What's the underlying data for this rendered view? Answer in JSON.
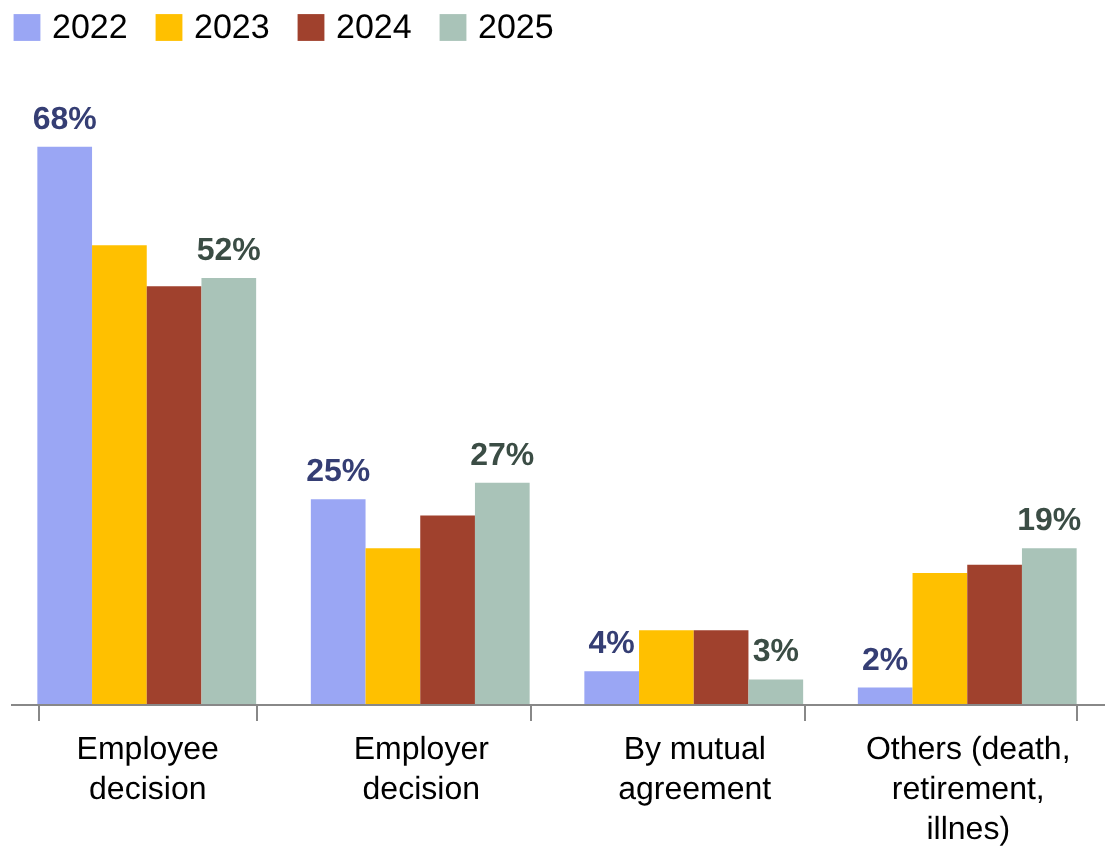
{
  "chart_data": {
    "type": "bar",
    "categories": [
      "Employee decision",
      "Employer decision",
      "By mutual agreement",
      "Others (death, retirement, illnes)"
    ],
    "series": [
      {
        "name": "2022",
        "color": "#9aa6f4",
        "values": [
          68,
          25,
          4,
          2
        ],
        "value_labels": [
          "68%",
          "25%",
          "4%",
          "2%"
        ]
      },
      {
        "name": "2023",
        "color": "#ffc000",
        "values": [
          56,
          19,
          9,
          16
        ]
      },
      {
        "name": "2024",
        "color": "#a0412d",
        "values": [
          51,
          23,
          9,
          17
        ]
      },
      {
        "name": "2025",
        "color": "#a9c3b8",
        "values": [
          52,
          27,
          3,
          19
        ],
        "value_labels": [
          "52%",
          "27%",
          "3%",
          "19%"
        ]
      }
    ],
    "legend": "top",
    "grid": false
  }
}
